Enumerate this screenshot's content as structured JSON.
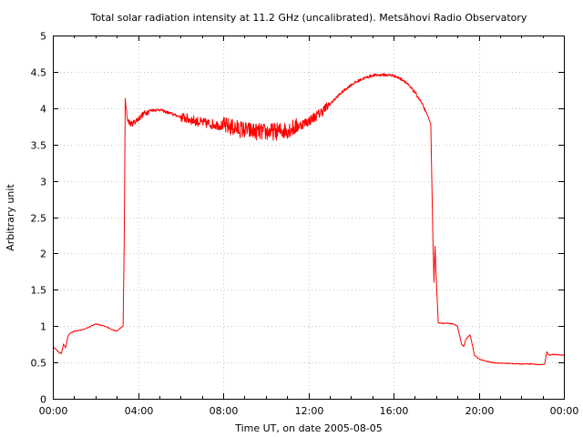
{
  "chart_data": {
    "type": "line",
    "title": "Total solar radiation intensity at 11.2 GHz (uncalibrated). Metsähovi Radio Observatory",
    "xlabel": "Time UT, on date 2005-08-05",
    "ylabel": "Arbitrary unit",
    "xlim": [
      0,
      24
    ],
    "ylim": [
      0,
      5
    ],
    "x_ticks": [
      0,
      4,
      8,
      12,
      16,
      20,
      24
    ],
    "x_tick_labels": [
      "00:00",
      "04:00",
      "08:00",
      "12:00",
      "16:00",
      "20:00",
      "00:00"
    ],
    "y_ticks": [
      0,
      0.5,
      1,
      1.5,
      2,
      2.5,
      3,
      3.5,
      4,
      4.5,
      5
    ],
    "y_tick_labels": [
      "0",
      "0.5",
      "1",
      "1.5",
      "2",
      "2.5",
      "3",
      "3.5",
      "4",
      "4.5",
      "5"
    ],
    "grid": true,
    "legend": "none",
    "series": [
      {
        "color": "#ff0000",
        "x": [
          0.0,
          0.25,
          0.4,
          0.5,
          0.6,
          0.7,
          0.8,
          1.0,
          1.4,
          1.8,
          2.0,
          2.3,
          2.6,
          2.8,
          3.0,
          3.2,
          3.3,
          3.35,
          3.4,
          3.5,
          3.6,
          3.7,
          4.0,
          4.3,
          4.6,
          5.0,
          5.5,
          6.0,
          6.5,
          7.0,
          7.5,
          8.0,
          8.5,
          9.0,
          9.5,
          10.0,
          10.5,
          11.0,
          11.5,
          12.0,
          12.5,
          13.0,
          13.5,
          14.0,
          14.5,
          15.0,
          15.5,
          16.0,
          16.5,
          17.0,
          17.3,
          17.6,
          17.75,
          17.85,
          17.9,
          17.95,
          18.0,
          18.1,
          18.2,
          18.3,
          18.5,
          18.8,
          19.0,
          19.2,
          19.3,
          19.4,
          19.6,
          19.8,
          20.0,
          20.3,
          20.6,
          21.0,
          22.0,
          22.5,
          22.8,
          23.0,
          23.1,
          23.2,
          23.3,
          23.5,
          24.0
        ],
        "y": [
          0.72,
          0.65,
          0.62,
          0.75,
          0.7,
          0.85,
          0.9,
          0.93,
          0.95,
          1.0,
          1.03,
          1.01,
          0.98,
          0.95,
          0.93,
          0.98,
          1.0,
          2.1,
          4.1,
          3.85,
          3.8,
          3.78,
          3.85,
          3.93,
          3.97,
          3.98,
          3.93,
          3.88,
          3.84,
          3.8,
          3.78,
          3.76,
          3.73,
          3.7,
          3.68,
          3.67,
          3.68,
          3.7,
          3.75,
          3.82,
          3.92,
          4.05,
          4.2,
          4.32,
          4.4,
          4.45,
          4.46,
          4.45,
          4.38,
          4.22,
          4.08,
          3.9,
          3.78,
          2.2,
          1.6,
          2.1,
          1.7,
          1.05,
          1.04,
          1.04,
          1.04,
          1.03,
          1.0,
          0.75,
          0.72,
          0.82,
          0.88,
          0.6,
          0.55,
          0.52,
          0.5,
          0.49,
          0.48,
          0.48,
          0.47,
          0.47,
          0.48,
          0.65,
          0.6,
          0.61,
          0.6
        ]
      }
    ]
  }
}
